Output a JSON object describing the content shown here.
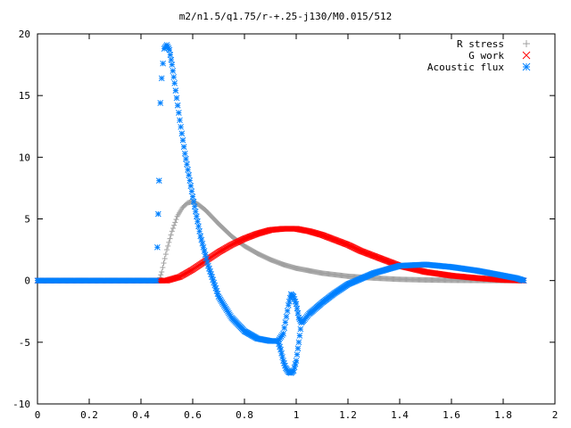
{
  "chart_data": {
    "type": "scatter",
    "title": "m2/n1.5/q1.75/r-+.25-j130/M0.015/512",
    "xlabel": "",
    "ylabel": "",
    "xlim": [
      0,
      2
    ],
    "ylim": [
      -10,
      20
    ],
    "x_ticks": [
      "0",
      "0.2",
      "0.4",
      "0.6",
      "0.8",
      "1",
      "1.2",
      "1.4",
      "1.6",
      "1.8",
      "2"
    ],
    "y_ticks": [
      "-10",
      "-5",
      "0",
      "5",
      "10",
      "15",
      "20"
    ],
    "grid": false,
    "legend_position": "top-right",
    "series": [
      {
        "name": "R stress",
        "marker": "+",
        "color": "#a0a0a0",
        "x": [
          0.0,
          0.4,
          0.47,
          0.48,
          0.5,
          0.52,
          0.54,
          0.56,
          0.58,
          0.6,
          0.62,
          0.65,
          0.7,
          0.75,
          0.8,
          0.85,
          0.9,
          0.95,
          1.0,
          1.05,
          1.1,
          1.2,
          1.3,
          1.4,
          1.5,
          1.6,
          1.7,
          1.8,
          1.88
        ],
        "y": [
          0.0,
          0.0,
          0.0,
          0.7,
          2.5,
          4.0,
          5.2,
          5.9,
          6.3,
          6.4,
          6.2,
          5.7,
          4.6,
          3.6,
          2.8,
          2.2,
          1.7,
          1.3,
          1.0,
          0.8,
          0.6,
          0.35,
          0.2,
          0.1,
          0.05,
          0.02,
          0.01,
          0.0,
          0.0
        ]
      },
      {
        "name": "G work",
        "marker": "x",
        "color": "#ff0000",
        "x": [
          0.0,
          0.4,
          0.47,
          0.5,
          0.55,
          0.6,
          0.65,
          0.7,
          0.75,
          0.8,
          0.85,
          0.9,
          0.95,
          1.0,
          1.05,
          1.1,
          1.15,
          1.2,
          1.25,
          1.3,
          1.35,
          1.4,
          1.5,
          1.6,
          1.7,
          1.8,
          1.88
        ],
        "y": [
          0.0,
          0.0,
          0.0,
          0.0,
          0.3,
          0.9,
          1.6,
          2.3,
          2.9,
          3.4,
          3.8,
          4.1,
          4.2,
          4.2,
          4.0,
          3.7,
          3.3,
          2.9,
          2.4,
          2.0,
          1.6,
          1.2,
          0.7,
          0.4,
          0.2,
          0.05,
          0.0
        ]
      },
      {
        "name": "Acoustic flux",
        "marker": "*",
        "color": "#0080ff",
        "x": [
          0.0,
          0.4,
          0.46,
          0.47,
          0.475,
          0.48,
          0.485,
          0.49,
          0.5,
          0.51,
          0.52,
          0.53,
          0.55,
          0.57,
          0.6,
          0.63,
          0.66,
          0.7,
          0.75,
          0.8,
          0.85,
          0.9,
          0.93,
          0.95,
          0.97,
          0.98,
          0.99,
          1.0,
          1.01,
          1.02,
          1.03,
          1.05,
          1.1,
          1.15,
          1.2,
          1.3,
          1.4,
          1.5,
          1.6,
          1.7,
          1.8,
          1.85,
          1.88
        ],
        "y": [
          0.0,
          0.0,
          0.0,
          8.1,
          14.4,
          16.4,
          17.6,
          18.8,
          19.1,
          18.7,
          17.5,
          16.0,
          13.0,
          10.3,
          6.8,
          3.6,
          1.2,
          -1.3,
          -3.0,
          -4.1,
          -4.7,
          -4.9,
          -4.9,
          -4.3,
          -2.0,
          -1.1,
          -1.3,
          -1.9,
          -3.0,
          -3.4,
          -3.2,
          -2.7,
          -1.8,
          -1.0,
          -0.3,
          0.6,
          1.2,
          1.3,
          1.1,
          0.8,
          0.4,
          0.2,
          0.0
        ]
      },
      {
        "name": "",
        "marker": "*",
        "color": "#0080ff",
        "x": [
          0.93,
          0.94,
          0.95,
          0.96,
          0.97,
          0.98,
          0.99,
          1.0,
          1.01,
          1.02
        ],
        "y": [
          -4.9,
          -5.6,
          -6.5,
          -7.1,
          -7.4,
          -7.5,
          -7.3,
          -6.5,
          -5.0,
          -3.4
        ]
      }
    ]
  }
}
